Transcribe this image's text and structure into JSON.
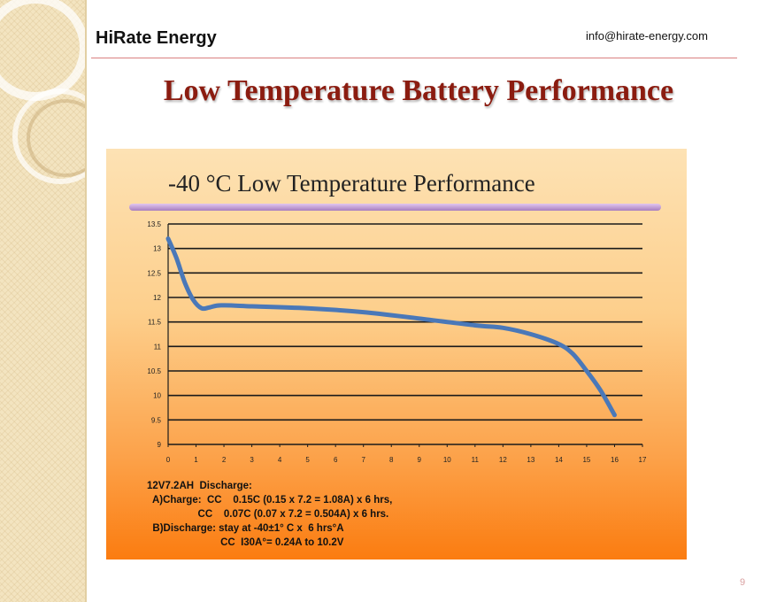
{
  "header": {
    "company": "HiRate Energy",
    "email": "info@hirate-energy.com"
  },
  "slide": {
    "title": "Low Temperature Battery Performance",
    "page_number": "9"
  },
  "colors": {
    "title": "#8b1c10",
    "curve": "#4a78b8",
    "rule": "#d98080"
  },
  "notes": {
    "line1": "12V7.2AH  Discharge:",
    "line2": "  A)Charge:  CC    0.15C (0.15 x 7.2 = 1.08A) x 6 hrs,",
    "line3": "                  CC    0.07C (0.07 x 7.2 = 0.504A) x 6 hrs.",
    "line4": "  B)Discharge: stay at -40±1° C x  6 hrs°A",
    "line5": "                          CC  I30A°= 0.24A to 10.2V"
  },
  "chart_data": {
    "type": "line",
    "title": "-40 °C Low Temperature Performance",
    "xlabel": "",
    "ylabel": "",
    "xlim": [
      0,
      17
    ],
    "ylim": [
      9,
      13.5
    ],
    "x_ticks": [
      "0",
      "1",
      "2",
      "3",
      "4",
      "5",
      "6",
      "7",
      "8",
      "9",
      "10",
      "11",
      "12",
      "13",
      "14",
      "15",
      "16",
      "17"
    ],
    "y_ticks": [
      "9",
      "9.5",
      "10",
      "10.5",
      "11",
      "11.5",
      "12",
      "12.5",
      "13",
      "13.5"
    ],
    "grid": true,
    "series": [
      {
        "x": [
          0,
          0.3,
          0.6,
          0.9,
          1.2,
          1.5,
          1.9,
          3,
          5,
          7,
          9,
          11,
          12,
          13,
          14,
          14.5,
          15,
          15.5,
          16
        ],
        "values": [
          13.2,
          12.8,
          12.3,
          11.95,
          11.78,
          11.8,
          11.84,
          11.82,
          11.78,
          11.7,
          11.57,
          11.43,
          11.38,
          11.25,
          11.05,
          10.85,
          10.5,
          10.1,
          9.6
        ]
      }
    ]
  }
}
